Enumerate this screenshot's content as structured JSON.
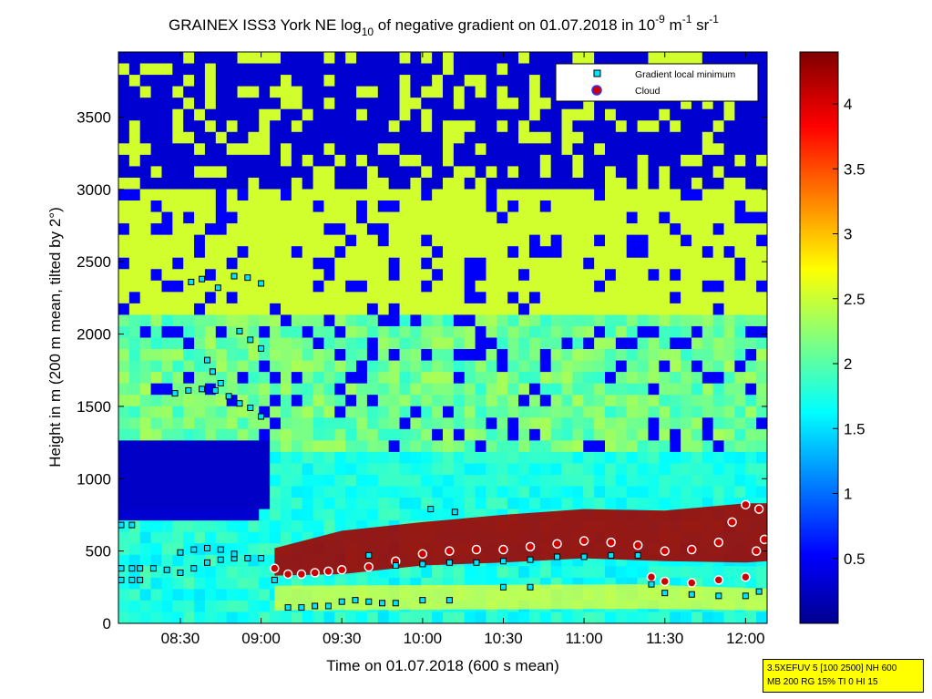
{
  "chart_data": {
    "type": "heatmap",
    "title_parts": {
      "main": "GRAINEX ISS3 York NE log",
      "log_sub": "10",
      "mid": " of negative gradient on 01.07.2018 in 10",
      "exp1": "-9",
      "unit1": " m",
      "exp2": "-1",
      "unit2": " sr",
      "exp3": "-1"
    },
    "xlabel": "Time on 01.07.2018 (600 s mean)",
    "ylabel": "Height in m (200 m mean, tilted by 2°)",
    "x_ticks": [
      "08:30",
      "09:00",
      "09:30",
      "10:00",
      "10:30",
      "11:00",
      "11:30",
      "12:00"
    ],
    "x_range": [
      "08:07",
      "12:08"
    ],
    "y_ticks": [
      0,
      500,
      1000,
      1500,
      2000,
      2500,
      3000,
      3500
    ],
    "ylim": [
      0,
      3950
    ],
    "colorbar": {
      "ticks": [
        0.5,
        1,
        1.5,
        2,
        2.5,
        3,
        3.5,
        4
      ],
      "range": [
        0,
        4.4
      ],
      "colormap": "jet"
    },
    "legend": {
      "placement": "top-right",
      "entries": [
        {
          "label": "Gradient local minimum",
          "marker": "square",
          "color": "#00e5ff"
        },
        {
          "label": "Cloud",
          "marker": "circle",
          "color": "#cc0000"
        }
      ]
    },
    "gradient_local_minimum": [
      {
        "time": "08:08",
        "height": 380
      },
      {
        "time": "08:12",
        "height": 380
      },
      {
        "time": "08:15",
        "height": 380
      },
      {
        "time": "08:20",
        "height": 380
      },
      {
        "time": "08:25",
        "height": 370
      },
      {
        "time": "08:30",
        "height": 350
      },
      {
        "time": "08:35",
        "height": 380
      },
      {
        "time": "08:40",
        "height": 420
      },
      {
        "time": "08:45",
        "height": 440
      },
      {
        "time": "08:50",
        "height": 450
      },
      {
        "time": "08:55",
        "height": 450
      },
      {
        "time": "09:00",
        "height": 450
      },
      {
        "time": "08:08",
        "height": 300
      },
      {
        "time": "08:12",
        "height": 300
      },
      {
        "time": "08:15",
        "height": 300
      },
      {
        "time": "08:08",
        "height": 680
      },
      {
        "time": "08:12",
        "height": 680
      },
      {
        "time": "08:30",
        "height": 490
      },
      {
        "time": "08:35",
        "height": 510
      },
      {
        "time": "08:40",
        "height": 520
      },
      {
        "time": "08:45",
        "height": 510
      },
      {
        "time": "08:50",
        "height": 480
      },
      {
        "time": "08:28",
        "height": 1590
      },
      {
        "time": "08:33",
        "height": 1610
      },
      {
        "time": "08:38",
        "height": 1620
      },
      {
        "time": "08:43",
        "height": 1610
      },
      {
        "time": "08:48",
        "height": 1570
      },
      {
        "time": "08:52",
        "height": 1520
      },
      {
        "time": "08:56",
        "height": 1490
      },
      {
        "time": "09:00",
        "height": 1430
      },
      {
        "time": "08:34",
        "height": 2360
      },
      {
        "time": "08:38",
        "height": 2380
      },
      {
        "time": "08:44",
        "height": 2320
      },
      {
        "time": "08:50",
        "height": 2400
      },
      {
        "time": "08:55",
        "height": 2390
      },
      {
        "time": "09:00",
        "height": 2350
      },
      {
        "time": "08:52",
        "height": 2020
      },
      {
        "time": "08:56",
        "height": 1960
      },
      {
        "time": "09:00",
        "height": 1900
      },
      {
        "time": "08:40",
        "height": 1820
      },
      {
        "time": "08:42",
        "height": 1740
      },
      {
        "time": "08:45",
        "height": 1660
      },
      {
        "time": "09:05",
        "height": 300
      },
      {
        "time": "09:10",
        "height": 110
      },
      {
        "time": "09:15",
        "height": 110
      },
      {
        "time": "09:20",
        "height": 120
      },
      {
        "time": "09:25",
        "height": 120
      },
      {
        "time": "09:30",
        "height": 150
      },
      {
        "time": "09:35",
        "height": 160
      },
      {
        "time": "09:40",
        "height": 150
      },
      {
        "time": "09:45",
        "height": 140
      },
      {
        "time": "09:50",
        "height": 140
      },
      {
        "time": "10:00",
        "height": 160
      },
      {
        "time": "10:10",
        "height": 160
      },
      {
        "time": "09:40",
        "height": 470
      },
      {
        "time": "09:50",
        "height": 400
      },
      {
        "time": "10:00",
        "height": 410
      },
      {
        "time": "10:10",
        "height": 420
      },
      {
        "time": "10:20",
        "height": 420
      },
      {
        "time": "10:30",
        "height": 430
      },
      {
        "time": "10:40",
        "height": 440
      },
      {
        "time": "10:50",
        "height": 460
      },
      {
        "time": "11:00",
        "height": 460
      },
      {
        "time": "11:10",
        "height": 470
      },
      {
        "time": "11:20",
        "height": 470
      },
      {
        "time": "10:03",
        "height": 790
      },
      {
        "time": "10:12",
        "height": 770
      },
      {
        "time": "10:30",
        "height": 250
      },
      {
        "time": "10:40",
        "height": 250
      },
      {
        "time": "11:25",
        "height": 270
      },
      {
        "time": "11:30",
        "height": 210
      },
      {
        "time": "11:40",
        "height": 200
      },
      {
        "time": "11:50",
        "height": 190
      },
      {
        "time": "12:00",
        "height": 190
      },
      {
        "time": "12:05",
        "height": 220
      }
    ],
    "cloud": [
      {
        "time": "09:05",
        "height": 380
      },
      {
        "time": "09:10",
        "height": 340
      },
      {
        "time": "09:15",
        "height": 340
      },
      {
        "time": "09:20",
        "height": 350
      },
      {
        "time": "09:25",
        "height": 360
      },
      {
        "time": "09:30",
        "height": 370
      },
      {
        "time": "09:40",
        "height": 390
      },
      {
        "time": "09:50",
        "height": 430
      },
      {
        "time": "10:00",
        "height": 480
      },
      {
        "time": "10:10",
        "height": 500
      },
      {
        "time": "10:20",
        "height": 510
      },
      {
        "time": "10:30",
        "height": 510
      },
      {
        "time": "10:40",
        "height": 530
      },
      {
        "time": "10:50",
        "height": 550
      },
      {
        "time": "11:00",
        "height": 570
      },
      {
        "time": "11:10",
        "height": 560
      },
      {
        "time": "11:20",
        "height": 540
      },
      {
        "time": "11:30",
        "height": 500
      },
      {
        "time": "11:40",
        "height": 510
      },
      {
        "time": "11:50",
        "height": 560
      },
      {
        "time": "11:55",
        "height": 700
      },
      {
        "time": "12:00",
        "height": 820
      },
      {
        "time": "12:05",
        "height": 790
      },
      {
        "time": "12:07",
        "height": 580
      },
      {
        "time": "12:04",
        "height": 500
      },
      {
        "time": "11:25",
        "height": 320
      },
      {
        "time": "11:30",
        "height": 290
      },
      {
        "time": "11:40",
        "height": 280
      },
      {
        "time": "11:50",
        "height": 300
      },
      {
        "time": "12:00",
        "height": 320
      }
    ]
  },
  "info_box": {
    "line1": "3.5XEFUV 5 [100 2500] NH 600",
    "line2": "MB 200 RG 15% TI 0 HI 15"
  }
}
